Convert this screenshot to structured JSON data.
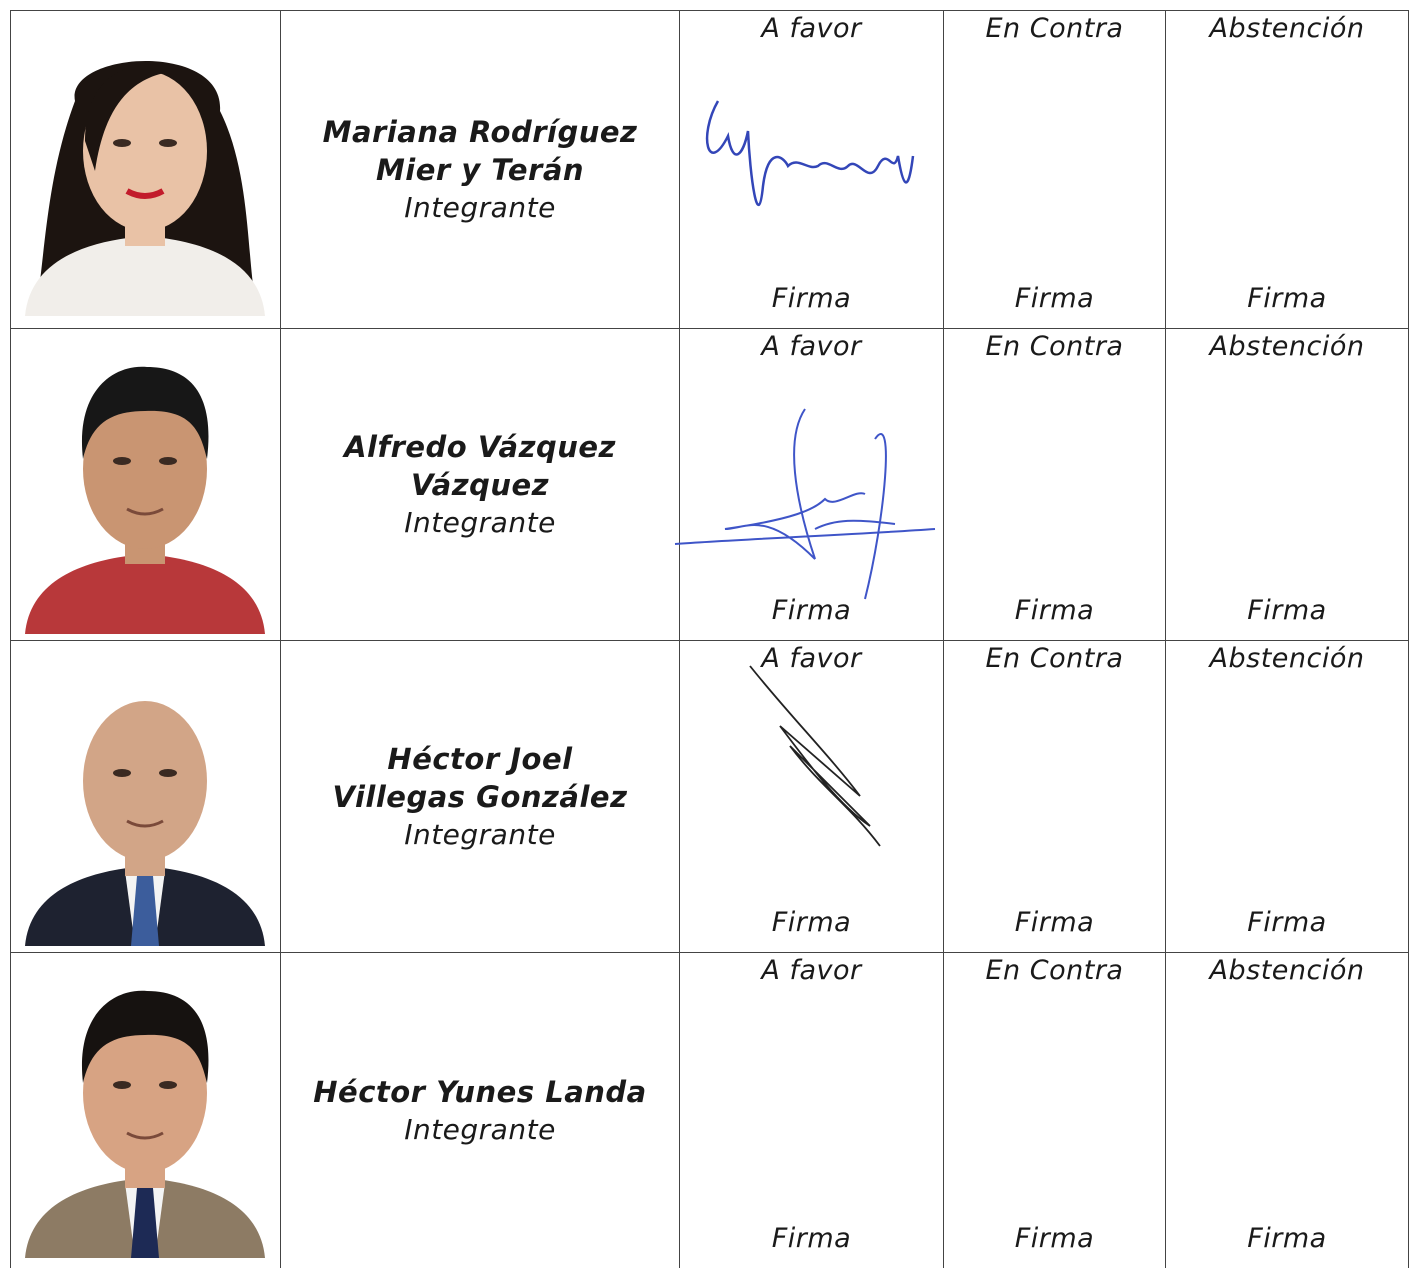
{
  "rows": [
    {
      "name": [
        "Mariana Rodríguez",
        "Mier y Terán"
      ],
      "role": "Integrante",
      "votes": [
        {
          "option": "A favor",
          "sign": "Firma"
        },
        {
          "option": "En Contra",
          "sign": "Firma"
        },
        {
          "option": "Abstención",
          "sign": "Firma"
        }
      ]
    },
    {
      "name": [
        "Alfredo Vázquez",
        "Vázquez"
      ],
      "role": "Integrante",
      "votes": [
        {
          "option": "A favor",
          "sign": "Firma"
        },
        {
          "option": "En Contra",
          "sign": "Firma"
        },
        {
          "option": "Abstención",
          "sign": "Firma"
        }
      ]
    },
    {
      "name": [
        "Héctor Joel",
        "Villegas González"
      ],
      "role": "Integrante",
      "votes": [
        {
          "option": "A favor",
          "sign": "Firma"
        },
        {
          "option": "En Contra",
          "sign": "Firma"
        },
        {
          "option": "Abstención",
          "sign": "Firma"
        }
      ]
    },
    {
      "name": [
        "Héctor Yunes Landa"
      ],
      "role": "Integrante",
      "votes": [
        {
          "option": "A favor",
          "sign": "Firma"
        },
        {
          "option": "En Contra",
          "sign": "Firma"
        },
        {
          "option": "Abstención",
          "sign": "Firma"
        }
      ]
    }
  ]
}
